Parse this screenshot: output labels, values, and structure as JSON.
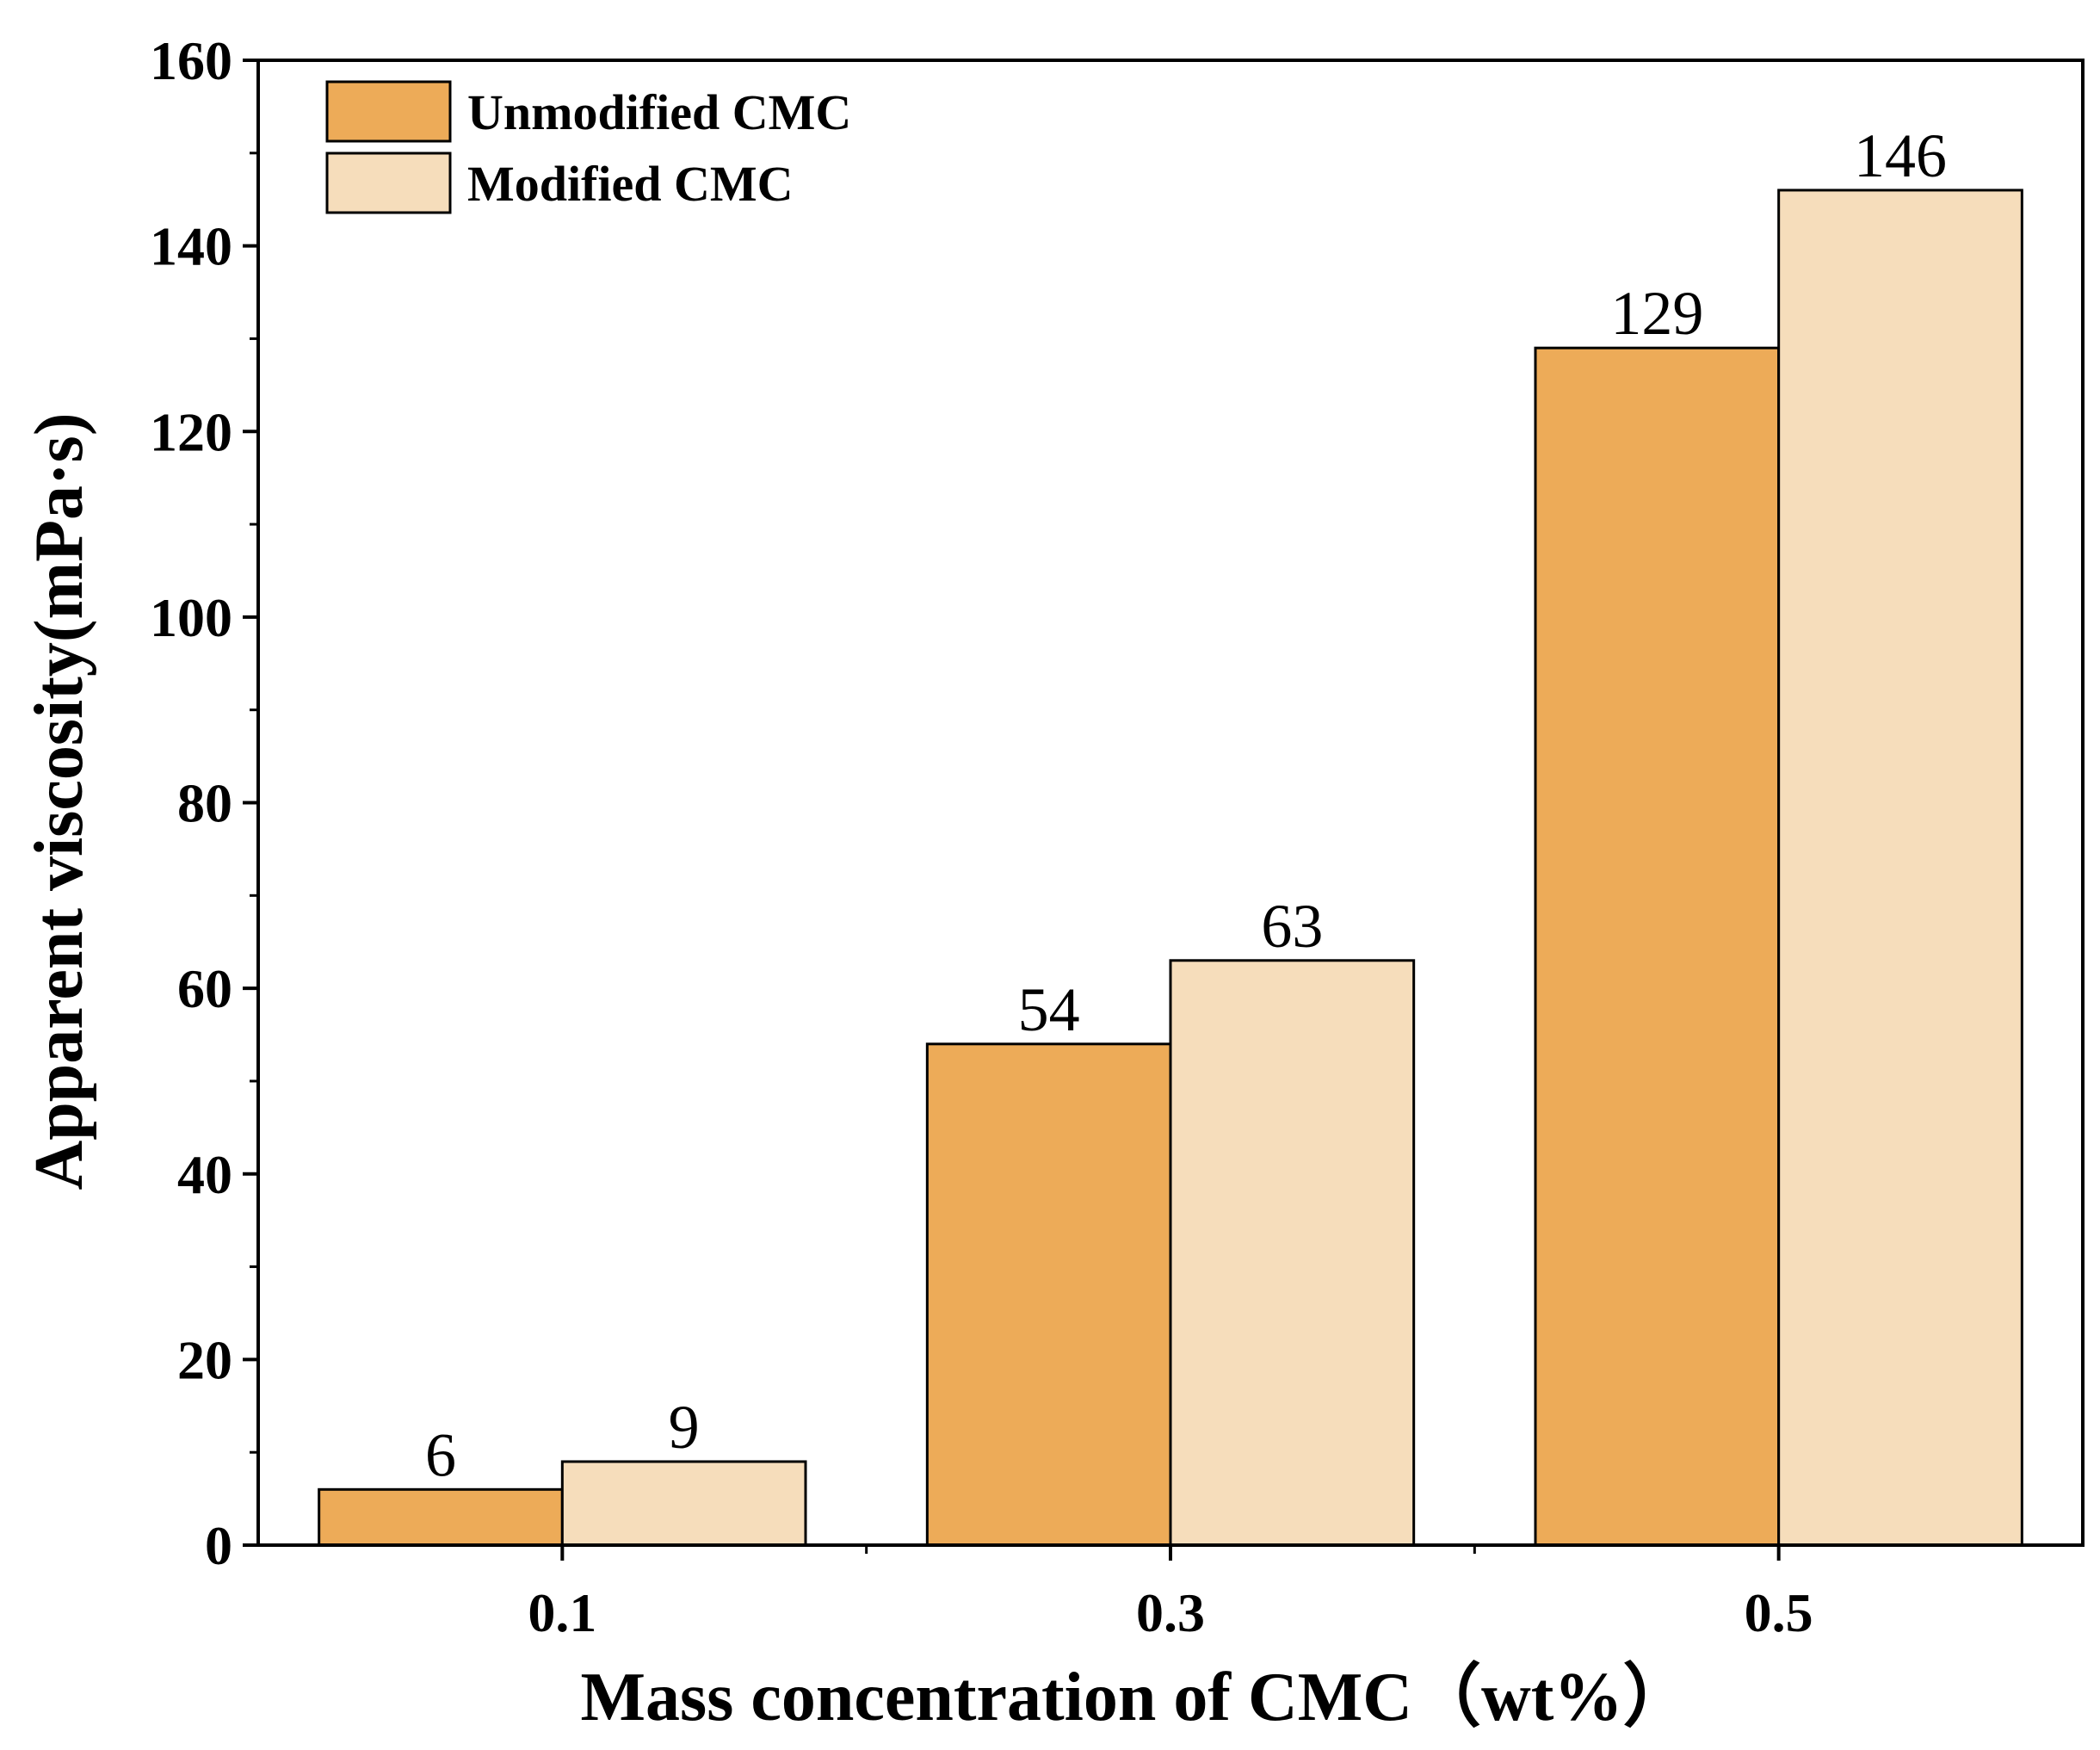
{
  "chart_data": {
    "type": "bar",
    "categories": [
      "0.1",
      "0.3",
      "0.5"
    ],
    "series": [
      {
        "name": "Unmodified CMC",
        "values": [
          6,
          54,
          129
        ],
        "color": "#EDAB58"
      },
      {
        "name": "Modified CMC",
        "values": [
          9,
          63,
          146
        ],
        "color": "#F6DDBB"
      }
    ],
    "data_labels": [
      [
        "6",
        "54",
        "129"
      ],
      [
        "9",
        "63",
        "146"
      ]
    ],
    "xlabel": "Mass concentration of CMC（wt%）",
    "ylabel": "Apparent viscosity(mPa·s)",
    "ylim": [
      0,
      160
    ],
    "yticks": [
      "0",
      "20",
      "40",
      "60",
      "80",
      "100",
      "120",
      "140",
      "160"
    ],
    "legend_position": "top-left",
    "grid": false
  }
}
